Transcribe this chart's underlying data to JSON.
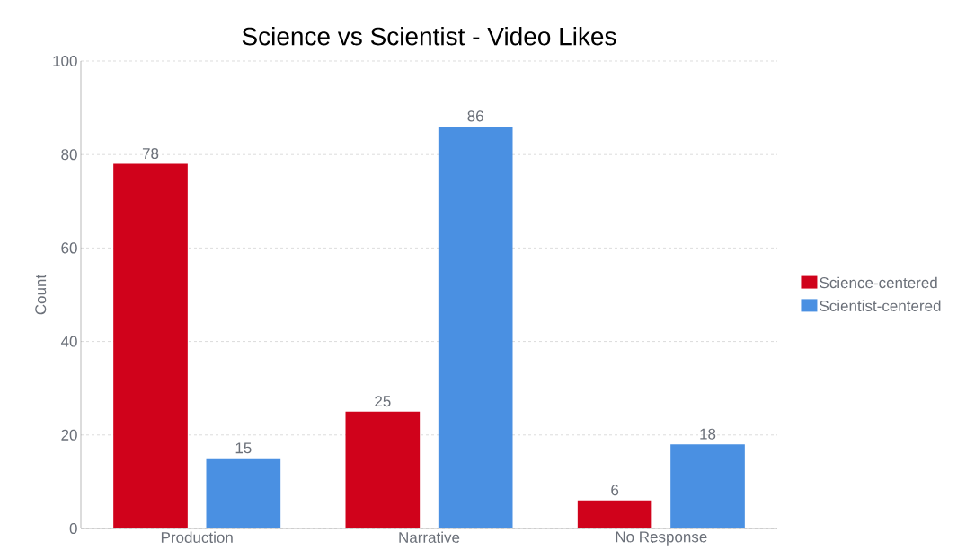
{
  "chart_data": {
    "type": "bar",
    "title": "Science vs Scientist - Video Likes",
    "ylabel": "Count",
    "categories": [
      "Production",
      "Narrative",
      "No Response"
    ],
    "series": [
      {
        "name": "Science-centered",
        "color": "#d0021b",
        "values": [
          78,
          25,
          6
        ]
      },
      {
        "name": "Scientist-centered",
        "color": "#4a90e2",
        "values": [
          15,
          86,
          18
        ]
      }
    ],
    "ylim": [
      0,
      100
    ],
    "yticks": [
      0,
      20,
      40,
      60,
      80,
      100
    ],
    "grid": "y",
    "legend": "right",
    "data_labels": true
  }
}
